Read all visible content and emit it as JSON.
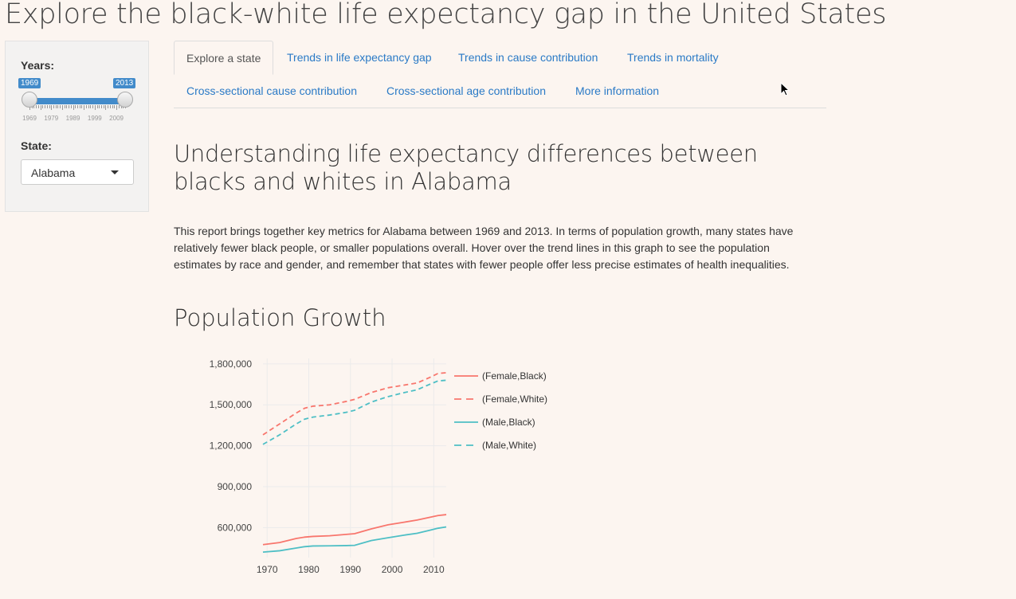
{
  "app": {
    "title": "Explore the black-white life expectancy gap in the United States"
  },
  "sidebar": {
    "years_label": "Years:",
    "slider": {
      "min_value": "1969",
      "max_value": "2013",
      "tick_labels": [
        "1969",
        "1979",
        "1989",
        "1999",
        "2009"
      ]
    },
    "state_label": "State:",
    "state_value": "Alabama"
  },
  "tabs": [
    {
      "label": "Explore a state",
      "active": true
    },
    {
      "label": "Trends in life expectancy gap",
      "active": false
    },
    {
      "label": "Trends in cause contribution",
      "active": false
    },
    {
      "label": "Trends in mortality",
      "active": false
    },
    {
      "label": "Cross-sectional cause contribution",
      "active": false
    },
    {
      "label": "Cross-sectional age contribution",
      "active": false
    },
    {
      "label": "More information",
      "active": false
    }
  ],
  "main": {
    "section_title": "Understanding life expectancy differences between blacks and whites in Alabama",
    "intro": "This report brings together key metrics for Alabama between 1969 and 2013. In terms of population growth, many states have relatively fewer black people, or smaller populations overall. Hover over the trend lines in this graph to see the population estimates by race and gender, and remember that states with fewer people offer less precise estimates of health inequalities.",
    "chart_title": "Population Growth"
  },
  "colors": {
    "accent": "#428bca",
    "link": "#2a7ac6",
    "female": "#f8766d",
    "male": "#4ebfc5"
  },
  "chart_data": {
    "type": "line",
    "title": "Population Growth",
    "xlabel": "",
    "ylabel": "",
    "xlim": [
      1969,
      2013
    ],
    "ylim": [
      380000,
      1840000
    ],
    "x_ticks": [
      1970,
      1980,
      1990,
      2000,
      2010
    ],
    "x_tick_labels": [
      "1970",
      "1980",
      "1990",
      "2000",
      "2010"
    ],
    "y_ticks": [
      600000,
      900000,
      1200000,
      1500000,
      1800000
    ],
    "y_tick_labels": [
      "600,000",
      "900,000",
      "1,200,000",
      "1,500,000",
      "1,800,000"
    ],
    "grid": true,
    "legend_position": "right",
    "x": [
      1969,
      1973,
      1977,
      1979,
      1981,
      1985,
      1989,
      1991,
      1995,
      1999,
      2003,
      2006,
      2009,
      2011,
      2013
    ],
    "series": [
      {
        "name": "(Female,Black)",
        "color": "#f8766d",
        "dash": "solid",
        "values": [
          475000,
          490000,
          520000,
          530000,
          535000,
          540000,
          550000,
          555000,
          590000,
          620000,
          640000,
          655000,
          675000,
          688000,
          695000
        ]
      },
      {
        "name": "(Female,White)",
        "color": "#f8766d",
        "dash": "dashed",
        "values": [
          1280000,
          1360000,
          1440000,
          1475000,
          1490000,
          1500000,
          1525000,
          1540000,
          1590000,
          1625000,
          1645000,
          1660000,
          1700000,
          1730000,
          1735000
        ]
      },
      {
        "name": "(Male,Black)",
        "color": "#4ebfc5",
        "dash": "solid",
        "values": [
          420000,
          430000,
          450000,
          460000,
          465000,
          466000,
          468000,
          470000,
          505000,
          525000,
          545000,
          558000,
          580000,
          595000,
          605000
        ]
      },
      {
        "name": "(Male,White)",
        "color": "#4ebfc5",
        "dash": "dashed",
        "values": [
          1210000,
          1280000,
          1360000,
          1395000,
          1410000,
          1425000,
          1445000,
          1460000,
          1520000,
          1560000,
          1590000,
          1610000,
          1650000,
          1675000,
          1680000
        ]
      }
    ]
  }
}
